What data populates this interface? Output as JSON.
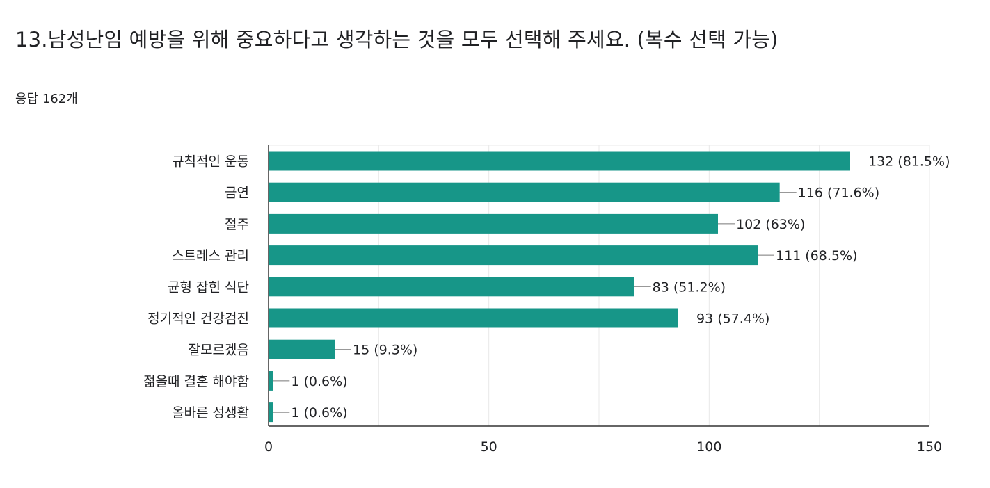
{
  "question": {
    "title": "13.남성난임 예방을 위해 중요하다고 생각하는 것을 모두 선택해 주세요.  (복수 선택 가능)",
    "response_count": "응답 162개"
  },
  "colors": {
    "bar": "#179688",
    "grid": "#e8e8e8",
    "axis": "#333333",
    "text": "#202124"
  },
  "chart_data": {
    "type": "bar",
    "orientation": "horizontal",
    "categories": [
      "규칙적인 운동",
      "금연",
      "절주",
      "스트레스 관리",
      "균형 잡힌 식단",
      "정기적인 건강검진",
      "잘모르겠음",
      "젊을때 결혼 해야함",
      "올바른 성생활"
    ],
    "values": [
      132,
      116,
      102,
      111,
      83,
      93,
      15,
      1,
      1
    ],
    "data_labels": [
      "132 (81.5%)",
      "116 (71.6%)",
      "102 (63%)",
      "111 (68.5%)",
      "83 (51.2%)",
      "93 (57.4%)",
      "15 (9.3%)",
      "1 (0.6%)",
      "1 (0.6%)"
    ],
    "xlim": [
      0,
      150
    ],
    "xticks": [
      0,
      50,
      100,
      150
    ],
    "grid": true,
    "legend": "none"
  }
}
